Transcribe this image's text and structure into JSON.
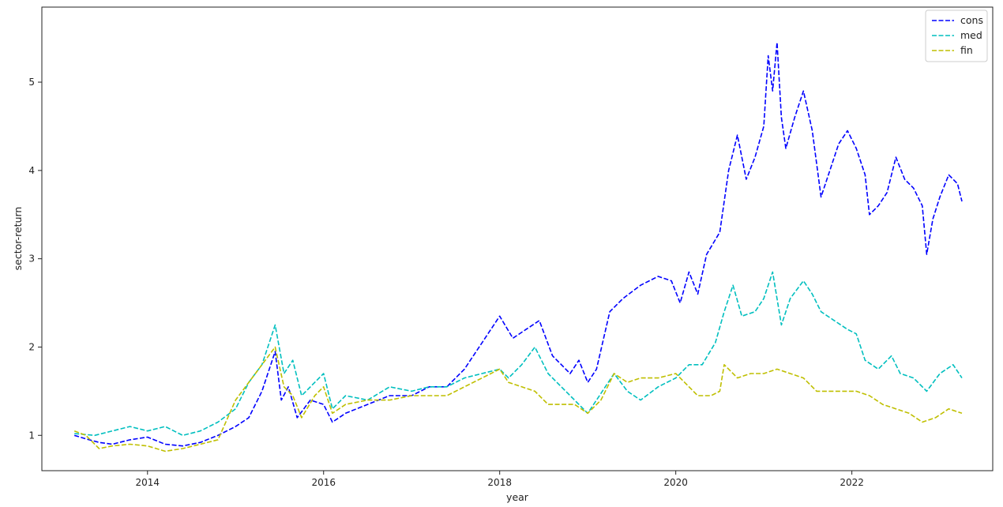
{
  "chart_data": {
    "type": "line",
    "title": "",
    "xlabel": "year",
    "ylabel": "sector-return",
    "xlim": [
      2012.8,
      2023.6
    ],
    "ylim": [
      0.6,
      5.85
    ],
    "x_ticks": [
      2014,
      2016,
      2018,
      2020,
      2022
    ],
    "x_tick_labels": [
      "2014",
      "2016",
      "2018",
      "2020",
      "2022"
    ],
    "y_ticks": [
      1,
      2,
      3,
      4,
      5
    ],
    "y_tick_labels": [
      "1",
      "2",
      "3",
      "4",
      "5"
    ],
    "grid": false,
    "legend_position": "top-right",
    "line_style": "dashed",
    "series": [
      {
        "name": "cons",
        "color": "#0000ff",
        "points": [
          [
            2013.17,
            1.0
          ],
          [
            2013.3,
            0.96
          ],
          [
            2013.45,
            0.92
          ],
          [
            2013.6,
            0.9
          ],
          [
            2013.8,
            0.95
          ],
          [
            2014.0,
            0.98
          ],
          [
            2014.2,
            0.9
          ],
          [
            2014.4,
            0.88
          ],
          [
            2014.6,
            0.92
          ],
          [
            2014.8,
            1.0
          ],
          [
            2015.0,
            1.1
          ],
          [
            2015.15,
            1.2
          ],
          [
            2015.3,
            1.5
          ],
          [
            2015.45,
            1.95
          ],
          [
            2015.52,
            1.4
          ],
          [
            2015.6,
            1.55
          ],
          [
            2015.7,
            1.2
          ],
          [
            2015.85,
            1.4
          ],
          [
            2016.0,
            1.35
          ],
          [
            2016.1,
            1.15
          ],
          [
            2016.25,
            1.25
          ],
          [
            2016.5,
            1.35
          ],
          [
            2016.75,
            1.45
          ],
          [
            2017.0,
            1.45
          ],
          [
            2017.2,
            1.55
          ],
          [
            2017.4,
            1.55
          ],
          [
            2017.6,
            1.75
          ],
          [
            2017.8,
            2.05
          ],
          [
            2018.0,
            2.35
          ],
          [
            2018.15,
            2.1
          ],
          [
            2018.3,
            2.2
          ],
          [
            2018.45,
            2.3
          ],
          [
            2018.6,
            1.9
          ],
          [
            2018.8,
            1.7
          ],
          [
            2018.9,
            1.85
          ],
          [
            2019.0,
            1.6
          ],
          [
            2019.1,
            1.75
          ],
          [
            2019.25,
            2.4
          ],
          [
            2019.4,
            2.55
          ],
          [
            2019.6,
            2.7
          ],
          [
            2019.8,
            2.8
          ],
          [
            2019.95,
            2.75
          ],
          [
            2020.05,
            2.5
          ],
          [
            2020.15,
            2.85
          ],
          [
            2020.25,
            2.6
          ],
          [
            2020.35,
            3.05
          ],
          [
            2020.5,
            3.3
          ],
          [
            2020.6,
            4.0
          ],
          [
            2020.7,
            4.4
          ],
          [
            2020.8,
            3.9
          ],
          [
            2020.9,
            4.15
          ],
          [
            2021.0,
            4.5
          ],
          [
            2021.05,
            5.3
          ],
          [
            2021.1,
            4.9
          ],
          [
            2021.15,
            5.45
          ],
          [
            2021.2,
            4.6
          ],
          [
            2021.25,
            4.25
          ],
          [
            2021.35,
            4.6
          ],
          [
            2021.45,
            4.9
          ],
          [
            2021.55,
            4.45
          ],
          [
            2021.65,
            3.7
          ],
          [
            2021.75,
            4.0
          ],
          [
            2021.85,
            4.3
          ],
          [
            2021.95,
            4.45
          ],
          [
            2022.05,
            4.25
          ],
          [
            2022.15,
            3.95
          ],
          [
            2022.2,
            3.5
          ],
          [
            2022.3,
            3.6
          ],
          [
            2022.4,
            3.75
          ],
          [
            2022.5,
            4.15
          ],
          [
            2022.6,
            3.9
          ],
          [
            2022.7,
            3.8
          ],
          [
            2022.8,
            3.6
          ],
          [
            2022.85,
            3.05
          ],
          [
            2022.92,
            3.45
          ],
          [
            2023.0,
            3.7
          ],
          [
            2023.1,
            3.95
          ],
          [
            2023.2,
            3.85
          ],
          [
            2023.25,
            3.65
          ]
        ]
      },
      {
        "name": "med",
        "color": "#00bfbf",
        "points": [
          [
            2013.17,
            1.02
          ],
          [
            2013.4,
            1.0
          ],
          [
            2013.6,
            1.05
          ],
          [
            2013.8,
            1.1
          ],
          [
            2014.0,
            1.05
          ],
          [
            2014.2,
            1.1
          ],
          [
            2014.4,
            1.0
          ],
          [
            2014.6,
            1.05
          ],
          [
            2014.8,
            1.15
          ],
          [
            2015.0,
            1.3
          ],
          [
            2015.15,
            1.6
          ],
          [
            2015.3,
            1.8
          ],
          [
            2015.45,
            2.25
          ],
          [
            2015.55,
            1.7
          ],
          [
            2015.65,
            1.85
          ],
          [
            2015.75,
            1.45
          ],
          [
            2015.9,
            1.6
          ],
          [
            2016.0,
            1.7
          ],
          [
            2016.1,
            1.3
          ],
          [
            2016.25,
            1.45
          ],
          [
            2016.5,
            1.4
          ],
          [
            2016.75,
            1.55
          ],
          [
            2017.0,
            1.5
          ],
          [
            2017.2,
            1.55
          ],
          [
            2017.4,
            1.55
          ],
          [
            2017.6,
            1.65
          ],
          [
            2017.8,
            1.7
          ],
          [
            2018.0,
            1.75
          ],
          [
            2018.1,
            1.65
          ],
          [
            2018.25,
            1.8
          ],
          [
            2018.4,
            2.0
          ],
          [
            2018.55,
            1.7
          ],
          [
            2018.7,
            1.55
          ],
          [
            2018.85,
            1.4
          ],
          [
            2019.0,
            1.25
          ],
          [
            2019.1,
            1.4
          ],
          [
            2019.3,
            1.7
          ],
          [
            2019.45,
            1.5
          ],
          [
            2019.6,
            1.4
          ],
          [
            2019.8,
            1.55
          ],
          [
            2020.0,
            1.65
          ],
          [
            2020.15,
            1.8
          ],
          [
            2020.3,
            1.8
          ],
          [
            2020.45,
            2.05
          ],
          [
            2020.55,
            2.4
          ],
          [
            2020.65,
            2.7
          ],
          [
            2020.75,
            2.35
          ],
          [
            2020.9,
            2.4
          ],
          [
            2021.0,
            2.55
          ],
          [
            2021.1,
            2.85
          ],
          [
            2021.2,
            2.25
          ],
          [
            2021.3,
            2.55
          ],
          [
            2021.45,
            2.75
          ],
          [
            2021.55,
            2.6
          ],
          [
            2021.65,
            2.4
          ],
          [
            2021.8,
            2.3
          ],
          [
            2021.95,
            2.2
          ],
          [
            2022.05,
            2.15
          ],
          [
            2022.15,
            1.85
          ],
          [
            2022.3,
            1.75
          ],
          [
            2022.45,
            1.9
          ],
          [
            2022.55,
            1.7
          ],
          [
            2022.7,
            1.65
          ],
          [
            2022.85,
            1.5
          ],
          [
            2023.0,
            1.7
          ],
          [
            2023.15,
            1.8
          ],
          [
            2023.25,
            1.65
          ]
        ]
      },
      {
        "name": "fin",
        "color": "#bfbf00",
        "points": [
          [
            2013.17,
            1.05
          ],
          [
            2013.3,
            1.0
          ],
          [
            2013.45,
            0.85
          ],
          [
            2013.6,
            0.88
          ],
          [
            2013.8,
            0.9
          ],
          [
            2014.0,
            0.88
          ],
          [
            2014.2,
            0.82
          ],
          [
            2014.4,
            0.85
          ],
          [
            2014.6,
            0.9
          ],
          [
            2014.8,
            0.95
          ],
          [
            2015.0,
            1.4
          ],
          [
            2015.15,
            1.6
          ],
          [
            2015.3,
            1.8
          ],
          [
            2015.45,
            2.0
          ],
          [
            2015.55,
            1.55
          ],
          [
            2015.65,
            1.45
          ],
          [
            2015.75,
            1.2
          ],
          [
            2015.9,
            1.45
          ],
          [
            2016.0,
            1.55
          ],
          [
            2016.1,
            1.25
          ],
          [
            2016.25,
            1.35
          ],
          [
            2016.5,
            1.4
          ],
          [
            2016.75,
            1.4
          ],
          [
            2017.0,
            1.45
          ],
          [
            2017.2,
            1.45
          ],
          [
            2017.4,
            1.45
          ],
          [
            2017.6,
            1.55
          ],
          [
            2017.8,
            1.65
          ],
          [
            2018.0,
            1.75
          ],
          [
            2018.1,
            1.6
          ],
          [
            2018.25,
            1.55
          ],
          [
            2018.4,
            1.5
          ],
          [
            2018.55,
            1.35
          ],
          [
            2018.7,
            1.35
          ],
          [
            2018.85,
            1.35
          ],
          [
            2019.0,
            1.25
          ],
          [
            2019.15,
            1.4
          ],
          [
            2019.3,
            1.7
          ],
          [
            2019.45,
            1.6
          ],
          [
            2019.6,
            1.65
          ],
          [
            2019.8,
            1.65
          ],
          [
            2020.0,
            1.7
          ],
          [
            2020.15,
            1.55
          ],
          [
            2020.25,
            1.45
          ],
          [
            2020.4,
            1.45
          ],
          [
            2020.5,
            1.5
          ],
          [
            2020.55,
            1.8
          ],
          [
            2020.7,
            1.65
          ],
          [
            2020.85,
            1.7
          ],
          [
            2021.0,
            1.7
          ],
          [
            2021.15,
            1.75
          ],
          [
            2021.3,
            1.7
          ],
          [
            2021.45,
            1.65
          ],
          [
            2021.6,
            1.5
          ],
          [
            2021.75,
            1.5
          ],
          [
            2021.9,
            1.5
          ],
          [
            2022.05,
            1.5
          ],
          [
            2022.2,
            1.45
          ],
          [
            2022.35,
            1.35
          ],
          [
            2022.5,
            1.3
          ],
          [
            2022.65,
            1.25
          ],
          [
            2022.8,
            1.15
          ],
          [
            2022.95,
            1.2
          ],
          [
            2023.1,
            1.3
          ],
          [
            2023.25,
            1.25
          ]
        ]
      }
    ]
  }
}
